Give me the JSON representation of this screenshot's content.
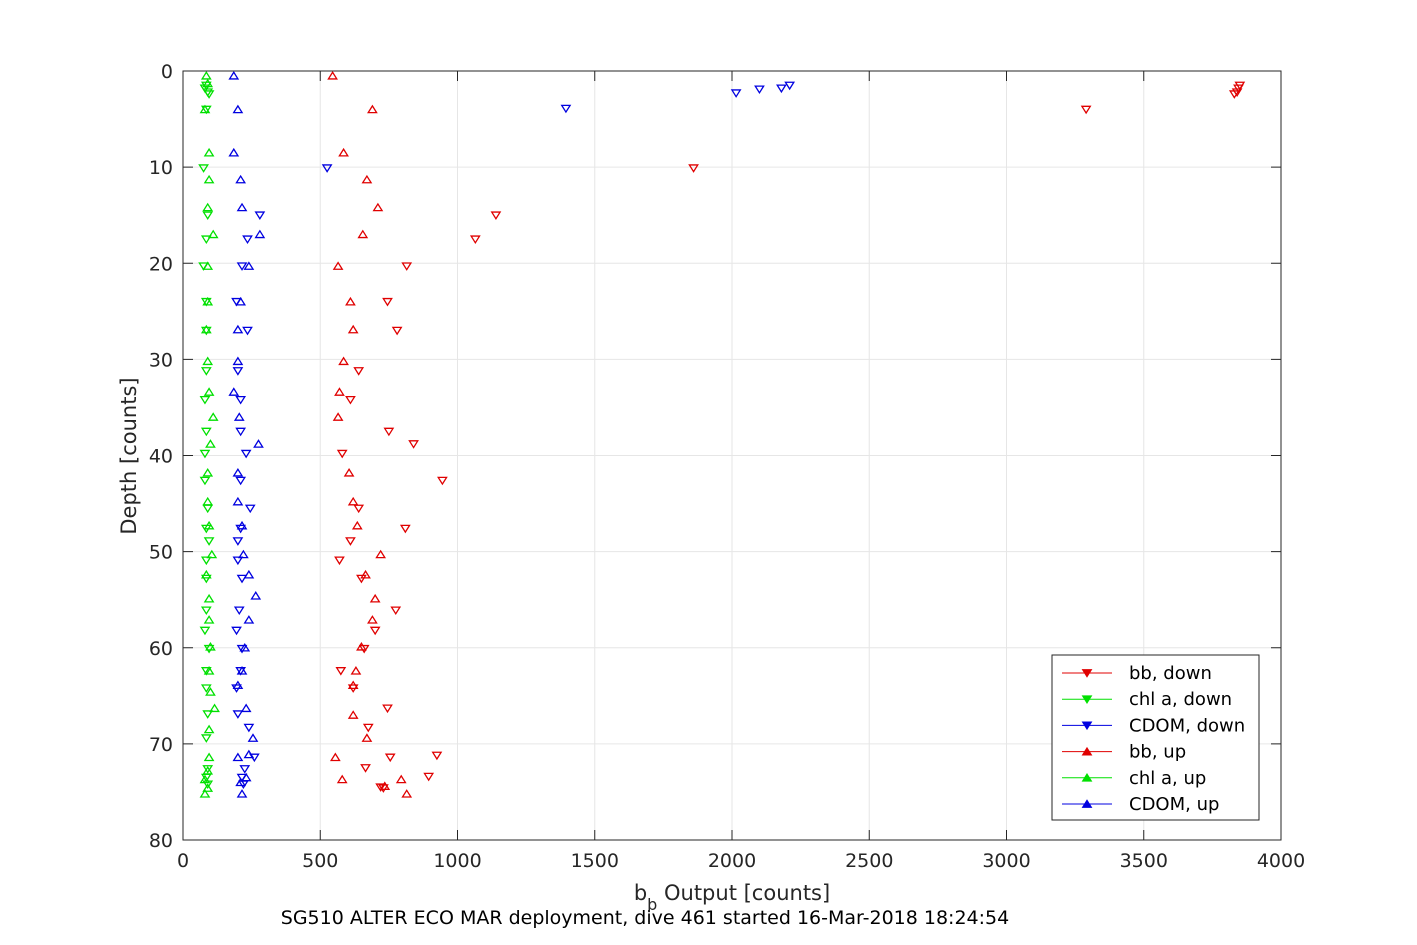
{
  "chart_data": {
    "type": "scatter",
    "xlabel": "b",
    "xlabel_sub": "b",
    "xlabel_rest": " Output [counts]",
    "ylabel": "Depth [counts]",
    "caption": "SG510 ALTER ECO MAR deployment, dive 461 started 16-Mar-2018 18:24:54",
    "xlim": [
      0,
      4000
    ],
    "ylim": [
      0,
      80
    ],
    "y_reversed": true,
    "grid": true,
    "legend_position": "bottom-right",
    "xticks": [
      "0",
      "500",
      "1000",
      "1500",
      "2000",
      "2500",
      "3000",
      "3500",
      "4000"
    ],
    "yticks": [
      "0",
      "10",
      "20",
      "30",
      "40",
      "50",
      "60",
      "70",
      "80"
    ],
    "series": [
      {
        "name": "bb, down",
        "color": "#e00000",
        "marker": "down",
        "points": [
          [
            3850,
            1.5
          ],
          [
            3845,
            1.8
          ],
          [
            3840,
            2.2
          ],
          [
            3830,
            2.4
          ],
          [
            3290,
            4
          ],
          [
            1860,
            10.1
          ],
          [
            1140,
            15
          ],
          [
            1065,
            17.5
          ],
          [
            815,
            20.3
          ],
          [
            745,
            24
          ],
          [
            780,
            27
          ],
          [
            640,
            31.2
          ],
          [
            610,
            34.2
          ],
          [
            750,
            37.5
          ],
          [
            840,
            38.8
          ],
          [
            580,
            39.8
          ],
          [
            945,
            42.6
          ],
          [
            640,
            45.5
          ],
          [
            810,
            47.6
          ],
          [
            610,
            48.9
          ],
          [
            570,
            50.9
          ],
          [
            650,
            52.8
          ],
          [
            775,
            56.1
          ],
          [
            700,
            58.2
          ],
          [
            660,
            60.1
          ],
          [
            575,
            62.4
          ],
          [
            620,
            64.2
          ],
          [
            745,
            66.3
          ],
          [
            675,
            68.3
          ],
          [
            755,
            71.4
          ],
          [
            925,
            71.2
          ],
          [
            665,
            72.5
          ],
          [
            895,
            73.4
          ],
          [
            720,
            74.5
          ],
          [
            730,
            74.6
          ]
        ]
      },
      {
        "name": "chl a, down",
        "color": "#00e000",
        "marker": "down",
        "points": [
          [
            85,
            1.5
          ],
          [
            80,
            1.8
          ],
          [
            90,
            2.2
          ],
          [
            95,
            2.4
          ],
          [
            85,
            4
          ],
          [
            75,
            10.1
          ],
          [
            90,
            15
          ],
          [
            85,
            17.5
          ],
          [
            75,
            20.3
          ],
          [
            85,
            24
          ],
          [
            85,
            27
          ],
          [
            85,
            31.2
          ],
          [
            80,
            34.2
          ],
          [
            85,
            37.5
          ],
          [
            80,
            39.8
          ],
          [
            80,
            42.6
          ],
          [
            90,
            45.5
          ],
          [
            85,
            47.6
          ],
          [
            95,
            48.9
          ],
          [
            85,
            50.9
          ],
          [
            85,
            52.8
          ],
          [
            85,
            56.1
          ],
          [
            80,
            58.2
          ],
          [
            95,
            60.1
          ],
          [
            85,
            62.4
          ],
          [
            85,
            64.2
          ],
          [
            90,
            66.9
          ],
          [
            85,
            69.4
          ],
          [
            90,
            72.6
          ],
          [
            85,
            73.5
          ],
          [
            90,
            74.2
          ]
        ]
      },
      {
        "name": "CDOM, down",
        "color": "#0000e0",
        "marker": "down",
        "points": [
          [
            2210,
            1.5
          ],
          [
            2180,
            1.8
          ],
          [
            2100,
            1.9
          ],
          [
            2015,
            2.3
          ],
          [
            1395,
            3.9
          ],
          [
            525,
            10.1
          ],
          [
            280,
            15
          ],
          [
            235,
            17.5
          ],
          [
            215,
            20.3
          ],
          [
            195,
            24
          ],
          [
            235,
            27
          ],
          [
            200,
            31.2
          ],
          [
            210,
            34.2
          ],
          [
            210,
            37.5
          ],
          [
            230,
            39.8
          ],
          [
            210,
            42.6
          ],
          [
            245,
            45.5
          ],
          [
            210,
            47.6
          ],
          [
            200,
            48.9
          ],
          [
            200,
            50.9
          ],
          [
            215,
            52.8
          ],
          [
            205,
            56.1
          ],
          [
            195,
            58.2
          ],
          [
            215,
            60.1
          ],
          [
            210,
            62.4
          ],
          [
            195,
            64.2
          ],
          [
            200,
            66.9
          ],
          [
            240,
            68.3
          ],
          [
            260,
            71.4
          ],
          [
            225,
            72.6
          ],
          [
            215,
            73.5
          ],
          [
            220,
            74.2
          ]
        ]
      },
      {
        "name": "bb, up",
        "color": "#e00000",
        "marker": "up",
        "points": [
          [
            545,
            0.5
          ],
          [
            690,
            4
          ],
          [
            585,
            8.5
          ],
          [
            670,
            11.3
          ],
          [
            710,
            14.2
          ],
          [
            655,
            17
          ],
          [
            565,
            20.3
          ],
          [
            610,
            24
          ],
          [
            620,
            26.9
          ],
          [
            585,
            30.2
          ],
          [
            570,
            33.4
          ],
          [
            565,
            36
          ],
          [
            605,
            41.8
          ],
          [
            620,
            44.8
          ],
          [
            635,
            47.3
          ],
          [
            720,
            50.3
          ],
          [
            665,
            52.4
          ],
          [
            700,
            54.9
          ],
          [
            690,
            57.1
          ],
          [
            650,
            59.9
          ],
          [
            630,
            62.4
          ],
          [
            620,
            63.9
          ],
          [
            620,
            67
          ],
          [
            670,
            69.4
          ],
          [
            555,
            71.4
          ],
          [
            580,
            73.7
          ],
          [
            795,
            73.7
          ],
          [
            735,
            74.4
          ],
          [
            815,
            75.2
          ]
        ]
      },
      {
        "name": "chl a, up",
        "color": "#00e000",
        "marker": "up",
        "points": [
          [
            85,
            0.5
          ],
          [
            90,
            1.3
          ],
          [
            80,
            4
          ],
          [
            95,
            8.5
          ],
          [
            95,
            11.3
          ],
          [
            90,
            14.2
          ],
          [
            110,
            17
          ],
          [
            90,
            20.3
          ],
          [
            90,
            24
          ],
          [
            85,
            26.9
          ],
          [
            90,
            30.2
          ],
          [
            95,
            33.4
          ],
          [
            110,
            36
          ],
          [
            100,
            38.8
          ],
          [
            90,
            41.8
          ],
          [
            90,
            44.8
          ],
          [
            95,
            47.3
          ],
          [
            105,
            50.3
          ],
          [
            85,
            52.4
          ],
          [
            95,
            54.9
          ],
          [
            95,
            57.1
          ],
          [
            100,
            59.9
          ],
          [
            95,
            62.4
          ],
          [
            100,
            64.6
          ],
          [
            115,
            66.3
          ],
          [
            95,
            68.5
          ],
          [
            95,
            71.4
          ],
          [
            90,
            72.8
          ],
          [
            80,
            73.7
          ],
          [
            90,
            74.6
          ],
          [
            80,
            75.2
          ]
        ]
      },
      {
        "name": "CDOM, up",
        "color": "#0000e0",
        "marker": "up",
        "points": [
          [
            185,
            0.5
          ],
          [
            200,
            4
          ],
          [
            185,
            8.5
          ],
          [
            210,
            11.3
          ],
          [
            215,
            14.2
          ],
          [
            280,
            17
          ],
          [
            240,
            20.3
          ],
          [
            210,
            24
          ],
          [
            200,
            26.9
          ],
          [
            200,
            30.2
          ],
          [
            185,
            33.4
          ],
          [
            205,
            36
          ],
          [
            275,
            38.8
          ],
          [
            200,
            41.8
          ],
          [
            200,
            44.8
          ],
          [
            215,
            47.3
          ],
          [
            220,
            50.3
          ],
          [
            240,
            52.4
          ],
          [
            265,
            54.6
          ],
          [
            240,
            57.1
          ],
          [
            225,
            60
          ],
          [
            215,
            62.4
          ],
          [
            200,
            63.9
          ],
          [
            230,
            66.3
          ],
          [
            255,
            69.4
          ],
          [
            240,
            71.1
          ],
          [
            200,
            71.4
          ],
          [
            230,
            73.5
          ],
          [
            210,
            74
          ],
          [
            215,
            75.2
          ]
        ]
      }
    ]
  }
}
